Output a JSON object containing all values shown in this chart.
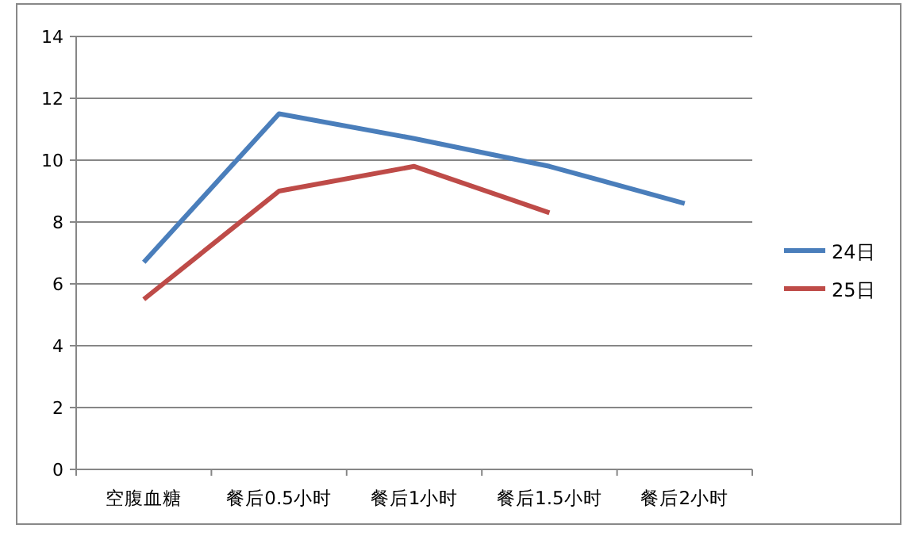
{
  "chart_data": {
    "type": "line",
    "categories": [
      "空腹血糖",
      "餐后0.5小时",
      "餐后1小时",
      "餐后1.5小时",
      "餐后2小时"
    ],
    "series": [
      {
        "name": "24日",
        "color": "#4a7ebb",
        "values": [
          6.7,
          11.5,
          10.7,
          9.8,
          8.6
        ]
      },
      {
        "name": "25日",
        "color": "#be4b48",
        "values": [
          5.5,
          9.0,
          9.8,
          8.3,
          null
        ]
      }
    ],
    "ylim": [
      0,
      14
    ],
    "yticks": [
      0,
      2,
      4,
      6,
      8,
      10,
      12,
      14
    ],
    "grid": "y",
    "legend": "right",
    "marker": "none",
    "line_style": "solid"
  }
}
